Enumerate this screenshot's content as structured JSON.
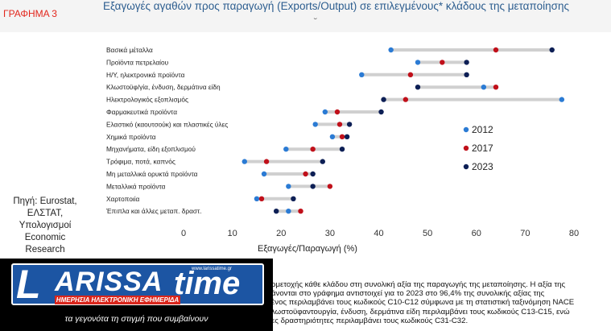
{
  "figure_label": "ΓΡΑΦΗΜΑ 3",
  "title": "Εξαγωγές αγαθών προς παραγωγή (Exports/Output) σε επιλεγμένους* κλάδους της μεταποίησης",
  "title_mark": "˘",
  "source_lines": [
    "Πηγή: Eurostat,",
    "ΕΛΣΤΑΤ,",
    "Υπολογισμοί",
    "Economic",
    "Research"
  ],
  "colors": {
    "2012": "#2b7bd4",
    "2017": "#c0101a",
    "2023": "#0d1f55",
    "range_bar": "#d0d0d0",
    "title": "#2c5d8f",
    "figure_label": "#e2261c"
  },
  "chart_data": {
    "type": "dot-range",
    "xlabel": "Εξαγωγές/Παραγωγή (%)",
    "xlim": [
      0,
      80
    ],
    "xticks": [
      0,
      10,
      20,
      30,
      40,
      50,
      60,
      70,
      80
    ],
    "grid": false,
    "legend_position": "right",
    "series_names": [
      "2012",
      "2017",
      "2023"
    ],
    "categories": [
      {
        "name": "Βασικά μέταλλα",
        "2012": 42.5,
        "2017": 64,
        "2023": 75.5
      },
      {
        "name": "Προϊόντα πετρελαίου",
        "2012": 48,
        "2017": 53,
        "2023": 58
      },
      {
        "name": "Η/Υ, ηλεκτρονικά προϊόντα",
        "2012": 36.5,
        "2017": 46.5,
        "2023": 58
      },
      {
        "name": "Κλωστοϋφ/γία, ένδυση, δερμάτινα είδη",
        "2012": 61.5,
        "2017": 64,
        "2023": 48
      },
      {
        "name": "Ηλεκτρολογικός εξοπλισμός",
        "2012": 77.5,
        "2017": 45.5,
        "2023": 41
      },
      {
        "name": "Φαρμακευτικά προϊόντα",
        "2012": 29,
        "2017": 31.5,
        "2023": 40.5
      },
      {
        "name": "Ελαστικό (καουτσούκ) και πλαστικές ύλες",
        "2012": 27,
        "2017": 32,
        "2023": 34
      },
      {
        "name": "Χημικά προϊόντα",
        "2012": 30.5,
        "2017": 32.5,
        "2023": 33.5
      },
      {
        "name": "Μηχανήματα, είδη εξοπλισμού",
        "2012": 21,
        "2017": 26.5,
        "2023": 32.5
      },
      {
        "name": "Τρόφιμα, ποτά, καπνός",
        "2012": 12.5,
        "2017": 17,
        "2023": 28.5
      },
      {
        "name": "Μη μεταλλικά ορυκτά προϊόντα",
        "2012": 16.5,
        "2017": 25,
        "2023": 26.5
      },
      {
        "name": "Μεταλλικά προϊόντα",
        "2012": 21.5,
        "2017": 30,
        "2023": 26.5
      },
      {
        "name": "Χαρτοποιία",
        "2012": 15,
        "2017": 16,
        "2023": 22.5
      },
      {
        "name": "Έπιπλα και άλλες μεταπ. δραστ.",
        "2012": 21.5,
        "2017": 24,
        "2023": 19
      }
    ]
  },
  "footnote_lines": [
    "ρμετοχής κάθε κλάδου στη συνολική αξία της παραγωγής της μεταποίησης. Η αξία της",
    "άνονται στο γράφημα αντιστοιχεί για το 2023 στο 96,4% της συνολικής αξίας της",
    "ένος περιλαμβάνει τους κωδικούς C10-C12 σύμφωνα με τη στατιστική ταξινόμηση NACE",
    "λωστοϋφαντουργία, ένδυση, δερμάτινα είδη περιλαμβάνει τους κωδικούς C13-C15, ενώ",
    "ες δραστηριότητες περιλαμβάνει τους κωδικούς C31-C32."
  ],
  "logo": {
    "letter": "L",
    "word": "ARISSA",
    "time": "time",
    "url": "www.larissatime.gr",
    "band": "ΗΜΕΡΗΣΙΑ ΗΛΕΚΤΡΟΝΙΚΗ ΕΦΗΜΕΡΙΔΑ",
    "tagline": "τα γεγονότα τη στιγμή που συμβαίνουν"
  }
}
